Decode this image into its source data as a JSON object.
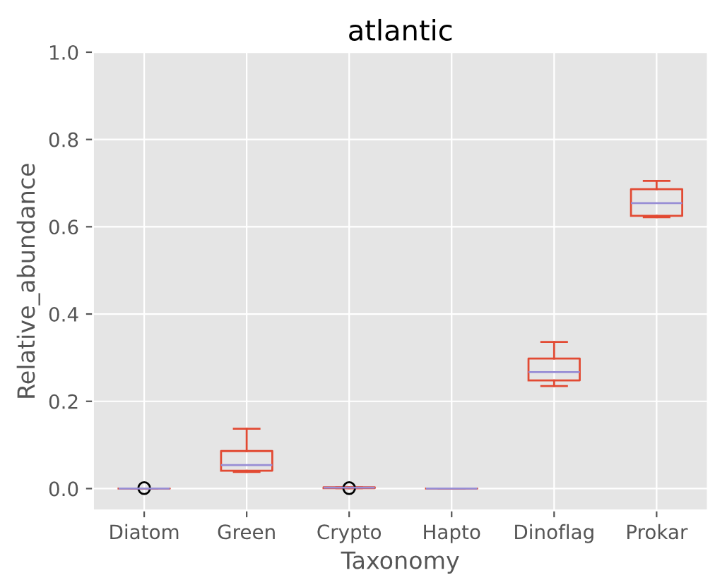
{
  "chart_data": {
    "type": "box",
    "title": "atlantic",
    "xlabel": "Taxonomy",
    "ylabel": "Relative_abundance",
    "categories": [
      "Diatom",
      "Green",
      "Crypto",
      "Hapto",
      "Dinoflag",
      "Prokar"
    ],
    "boxes": [
      {
        "low": 0,
        "q1": 0,
        "median": 0,
        "q3": 0,
        "high": 0,
        "outliers": [
          0.001
        ]
      },
      {
        "low": 0.038,
        "q1": 0.041,
        "median": 0.054,
        "q3": 0.086,
        "high": 0.137
      },
      {
        "low": 0.001,
        "q1": 0.001,
        "median": 0.002,
        "q3": 0.003,
        "high": 0.003,
        "outliers": [
          0.001
        ]
      },
      {
        "low": 0,
        "q1": 0,
        "median": 0,
        "q3": 0,
        "high": 0
      },
      {
        "low": 0.235,
        "q1": 0.248,
        "median": 0.267,
        "q3": 0.298,
        "high": 0.336
      },
      {
        "low": 0.622,
        "q1": 0.625,
        "median": 0.654,
        "q3": 0.686,
        "high": 0.705
      }
    ],
    "color": "#e24a33",
    "ylim": [
      -0.05,
      1.0
    ],
    "yticks": [
      {
        "value": 0,
        "label": "0.0"
      },
      {
        "value": 0.2,
        "label": "0.2"
      },
      {
        "value": 0.4,
        "label": "0.4"
      },
      {
        "value": 0.6,
        "label": "0.6"
      },
      {
        "value": 0.8,
        "label": "0.8"
      },
      {
        "value": 1.0,
        "label": "1.0"
      }
    ],
    "grid": true
  }
}
